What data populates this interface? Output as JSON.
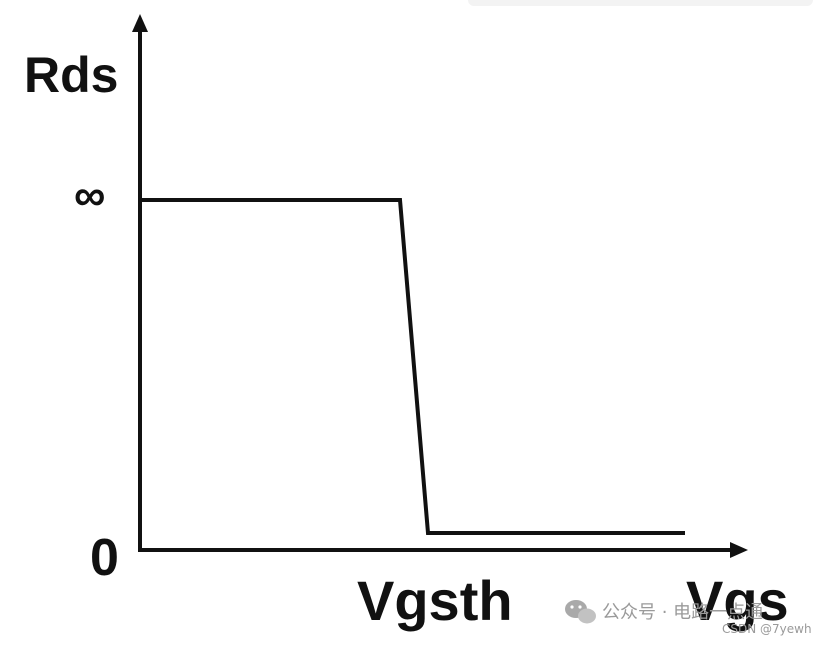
{
  "chart_data": {
    "type": "line",
    "ylabel": "Rds",
    "xlabel": "Vgs",
    "x_tick_label": "Vgsth",
    "y_top_label": "∞",
    "y_origin_label": "0",
    "series": [
      {
        "levels": [
          "high",
          "high",
          "low",
          "low"
        ],
        "segments": [
          "start",
          "threshold-start",
          "threshold-end",
          "end"
        ]
      }
    ]
  },
  "watermark": {
    "wechat": "公众号 · 电路一点通",
    "csdn": "CSDN @7yewh"
  }
}
